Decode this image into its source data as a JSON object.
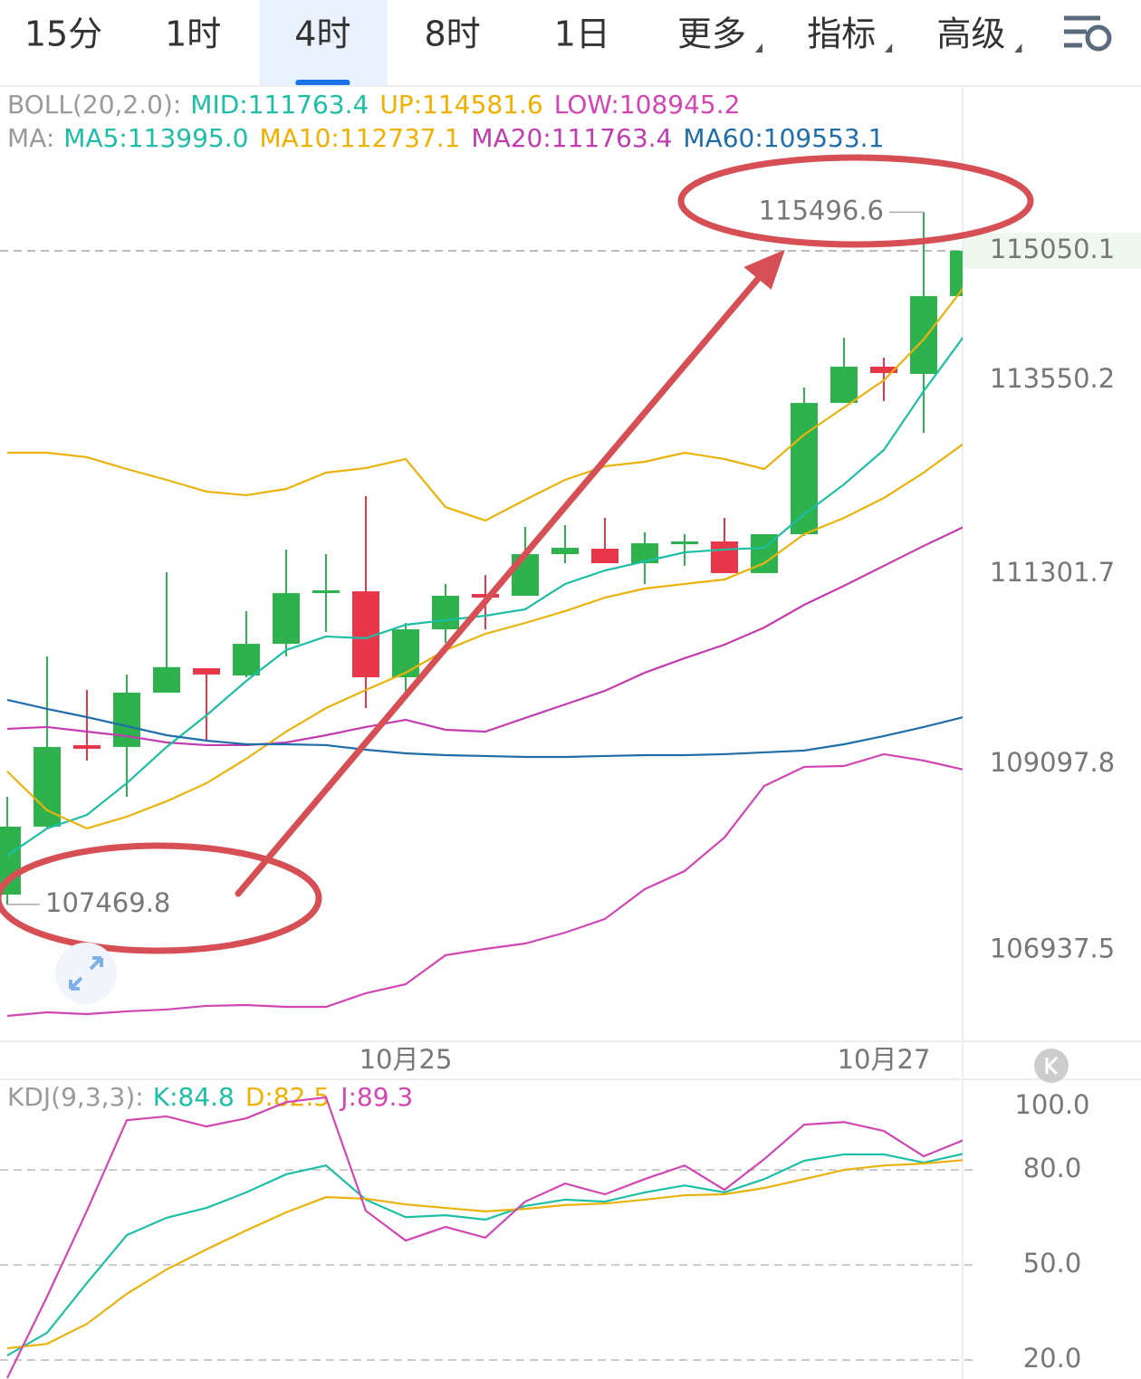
{
  "tabs": [
    {
      "label": "15分",
      "dropdown": false
    },
    {
      "label": "1时",
      "dropdown": false
    },
    {
      "label": "4时",
      "dropdown": false
    },
    {
      "label": "8时",
      "dropdown": false
    },
    {
      "label": "1日",
      "dropdown": false
    },
    {
      "label": "更多",
      "dropdown": true
    },
    {
      "label": "指标",
      "dropdown": true
    },
    {
      "label": "高级",
      "dropdown": true
    }
  ],
  "active_tab": 2,
  "chart_data": [
    {
      "type": "candlestick",
      "categories": [
        null,
        null,
        null,
        null,
        null,
        null,
        null,
        null,
        null,
        null,
        "10月25",
        null,
        null,
        null,
        null,
        null,
        null,
        null,
        null,
        null,
        null,
        null,
        "10月27",
        null,
        null
      ],
      "open": [
        107584,
        108372,
        109317,
        109296,
        109926,
        110209,
        110125,
        110492,
        111080,
        111101,
        110104,
        110660,
        111070,
        111049,
        111532,
        111595,
        111427,
        111658,
        111679,
        111312,
        111763,
        113286,
        113706,
        113622,
        114524
      ],
      "high": [
        108718,
        110346,
        109957,
        110136,
        111322,
        110209,
        110870,
        111584,
        111532,
        112204,
        110734,
        111185,
        111290,
        111847,
        111868,
        111952,
        111784,
        111763,
        111952,
        111763,
        113464,
        114042,
        113810,
        115496.6,
        115050.1
      ],
      "low": [
        107469.8,
        108350,
        109138,
        108718,
        109926,
        109369,
        110104,
        110346,
        110629,
        109747,
        109926,
        110503,
        110660,
        111049,
        111427,
        111427,
        111185,
        111396,
        111312,
        111312,
        111742,
        113286,
        113306,
        112939,
        114336
      ],
      "close": [
        108372,
        109296,
        109274,
        109926,
        110222,
        110136,
        110492,
        111080,
        111112,
        110104,
        110660,
        111049,
        111028,
        111532,
        111606,
        111427,
        111658,
        111679,
        111312,
        111763,
        113286,
        113706,
        113632,
        114524,
        115050.1
      ],
      "up_color": "#2eb24e",
      "down_color": "#e8374a",
      "ylim": [
        105883,
        116908
      ],
      "yticks": [
        106937.5,
        109097.8,
        111301.7,
        113550.2
      ],
      "grid": false,
      "legend": [
        {
          "title": "BOLL(20,2.0):",
          "items": [
            {
              "text": "MID:111763.4",
              "color": "#1cbfa5"
            },
            {
              "text": "UP:114581.6",
              "color": "#f0b000"
            },
            {
              "text": "LOW:108945.2",
              "color": "#d246b4"
            }
          ]
        },
        {
          "title": "MA:",
          "items": [
            {
              "text": "MA5:113995.0",
              "color": "#1cbfa5"
            },
            {
              "text": "MA10:112737.1",
              "color": "#f0b000"
            },
            {
              "text": "MA20:111763.4",
              "color": "#c33caf"
            },
            {
              "text": "MA60:109553.1",
              "color": "#1f6ea8"
            }
          ]
        }
      ],
      "series": [
        {
          "color": "#eab20c",
          "values": [
            112708,
            112708,
            112656,
            112519,
            112393,
            112257,
            112215,
            112288,
            112477,
            112530,
            112635,
            112078,
            111921,
            112162,
            112393,
            112551,
            112603,
            112708,
            112635,
            112519,
            112918,
            113233,
            113548,
            114021,
            114619
          ]
        },
        {
          "color": "#c33caf",
          "values": [
            109506,
            109527,
            109474,
            109422,
            109348,
            109317,
            109317,
            109348,
            109432,
            109527,
            109611,
            109495,
            109474,
            109632,
            109789,
            109947,
            110157,
            110325,
            110482,
            110682,
            110944,
            111165,
            111396,
            111627,
            111847
          ]
        },
        {
          "color": "#d246b4",
          "values": [
            106177,
            106219,
            106198,
            106230,
            106251,
            106293,
            106303,
            106282,
            106282,
            106440,
            106545,
            106881,
            106954,
            107017,
            107143,
            107301,
            107647,
            107857,
            108246,
            108844,
            109065,
            109075,
            109212,
            109138,
            109033
          ]
        },
        {
          "color": "#1cbfa5",
          "values": [
            108036,
            108351,
            108508,
            108876,
            109296,
            109663,
            110062,
            110419,
            110577,
            110556,
            110713,
            110766,
            110818,
            110892,
            111186,
            111343,
            111448,
            111553,
            111585,
            111606,
            111994,
            112341,
            112740,
            113422,
            114052
          ]
        },
        {
          "color": "#eab20c",
          "values": [
            109012,
            108561,
            108351,
            108487,
            108666,
            108876,
            109159,
            109474,
            109747,
            109957,
            110157,
            110419,
            110608,
            110734,
            110871,
            111028,
            111133,
            111186,
            111238,
            111427,
            111763,
            111952,
            112183,
            112477,
            112813
          ]
        },
        {
          "color": "#1f6ea8",
          "values": [
            109842,
            109737,
            109642,
            109537,
            109432,
            109369,
            109327,
            109327,
            109317,
            109264,
            109222,
            109201,
            109191,
            109180,
            109180,
            109191,
            109201,
            109201,
            109212,
            109233,
            109254,
            109327,
            109422,
            109527,
            109642
          ]
        }
      ]
    },
    {
      "type": "line",
      "legend": [
        {
          "title": "KDJ(9,3,3):",
          "items": [
            {
              "text": "K:84.8",
              "color": "#1cbfa5"
            },
            {
              "text": "D:82.5",
              "color": "#f0b000"
            },
            {
              "text": "J:89.3",
              "color": "#d246b4"
            }
          ]
        }
      ],
      "ylim": [
        14,
        108.6
      ],
      "yticks": [
        {
          "value": 20,
          "label": "20.0"
        },
        {
          "value": 50,
          "label": "50.0"
        },
        {
          "value": 80,
          "label": "80.0"
        },
        {
          "value": 100,
          "label": "100.0"
        }
      ],
      "grid": true,
      "series": [
        {
          "color": "#1cbfa5",
          "values": [
            21.4,
            28.6,
            44.3,
            59.4,
            64.9,
            68.0,
            72.9,
            78.6,
            81.4,
            70.6,
            65.1,
            65.7,
            64.3,
            68.6,
            70.6,
            70.0,
            72.9,
            75.1,
            72.9,
            77.1,
            82.9,
            84.9,
            84.9,
            82.3,
            85.1
          ]
        },
        {
          "color": "#eab20c",
          "values": [
            23.7,
            25.1,
            31.4,
            40.9,
            48.6,
            54.9,
            60.9,
            66.6,
            71.4,
            70.9,
            69.1,
            68.0,
            66.9,
            67.7,
            68.9,
            69.4,
            70.6,
            72.0,
            72.3,
            74.3,
            77.1,
            80.0,
            81.4,
            82.0,
            83.1
          ]
        },
        {
          "color": "#d246b4",
          "values": [
            14.3,
            40.0,
            67.1,
            95.7,
            96.9,
            93.7,
            96.3,
            101.4,
            102.9,
            67.1,
            57.7,
            62.0,
            58.6,
            70.0,
            75.7,
            72.3,
            77.1,
            81.4,
            73.7,
            83.4,
            94.3,
            95.1,
            92.3,
            84.3,
            89.4
          ]
        }
      ]
    }
  ]
}
